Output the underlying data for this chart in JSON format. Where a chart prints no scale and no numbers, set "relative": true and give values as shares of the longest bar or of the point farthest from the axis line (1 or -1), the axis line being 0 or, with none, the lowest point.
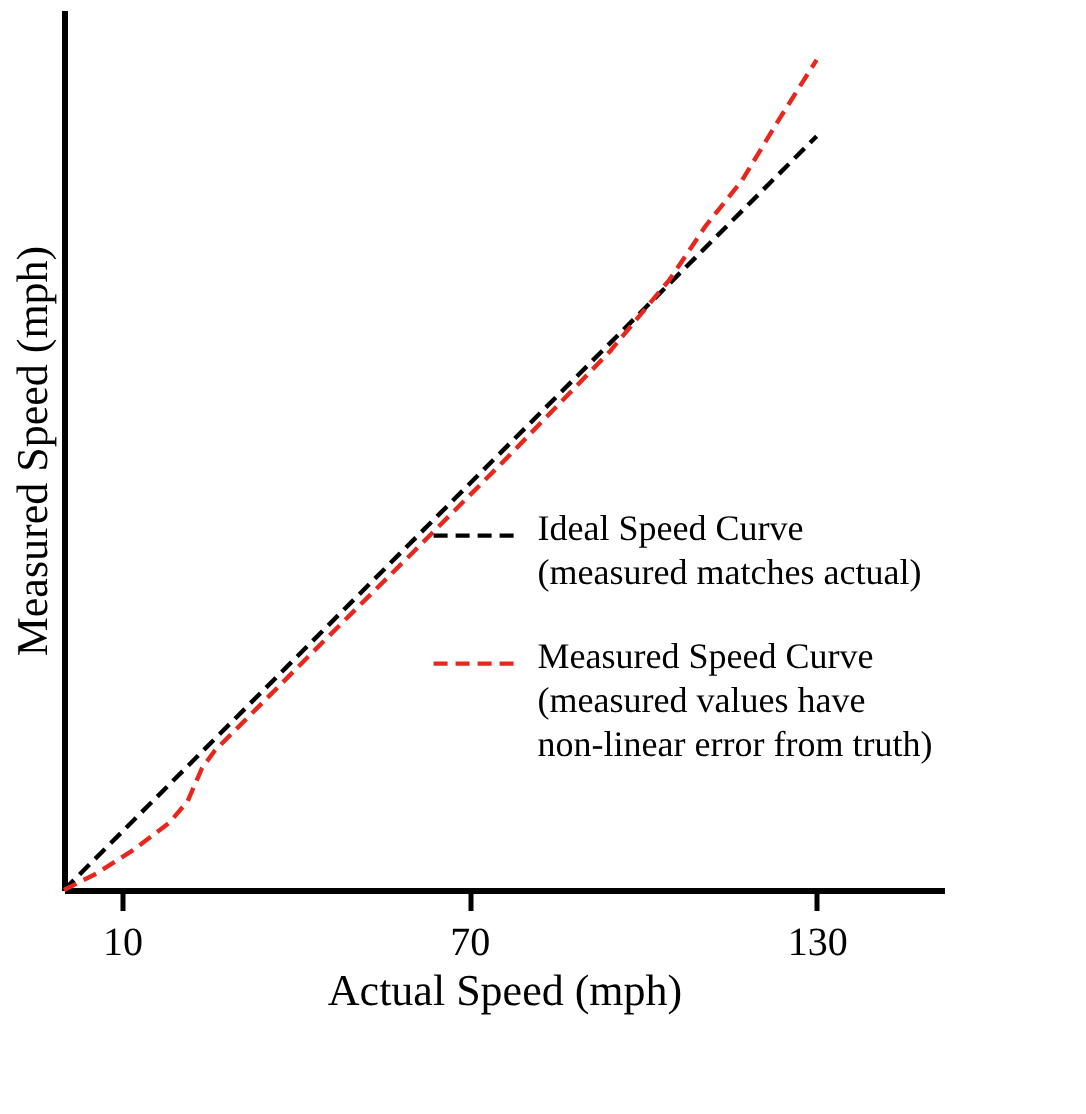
{
  "chart_data": {
    "type": "line",
    "xlabel": "Actual Speed (mph)",
    "ylabel": "Measured Speed (mph)",
    "relative": true,
    "xlim": [
      0,
      152
    ],
    "xticks": [
      10,
      70,
      130
    ],
    "tick_labels": "x",
    "grid": false,
    "legend": "bottom right",
    "line_style": "dashed",
    "marker": "none",
    "series": [
      {
        "name": "Ideal Speed Curve\n(measured matches actual)",
        "color": "#000000",
        "x": [
          0,
          130
        ],
        "values": [
          0,
          0.908
        ]
      },
      {
        "name": "Measured Speed Curve\n(measured values have\nnon-linear error from truth)",
        "color": "#e8261c",
        "x": [
          0,
          5.65,
          11.93,
          18.21,
          21.35,
          23.86,
          26.06,
          29.2,
          44.9,
          60.6,
          76.3,
          94.2,
          104.57,
          110.85,
          117.13,
          123.41,
          130
        ],
        "values": [
          0,
          0.02,
          0.048,
          0.081,
          0.107,
          0.147,
          0.168,
          0.19,
          0.3,
          0.409,
          0.519,
          0.648,
          0.735,
          0.8,
          0.855,
          0.927,
          1.0
        ]
      }
    ]
  }
}
